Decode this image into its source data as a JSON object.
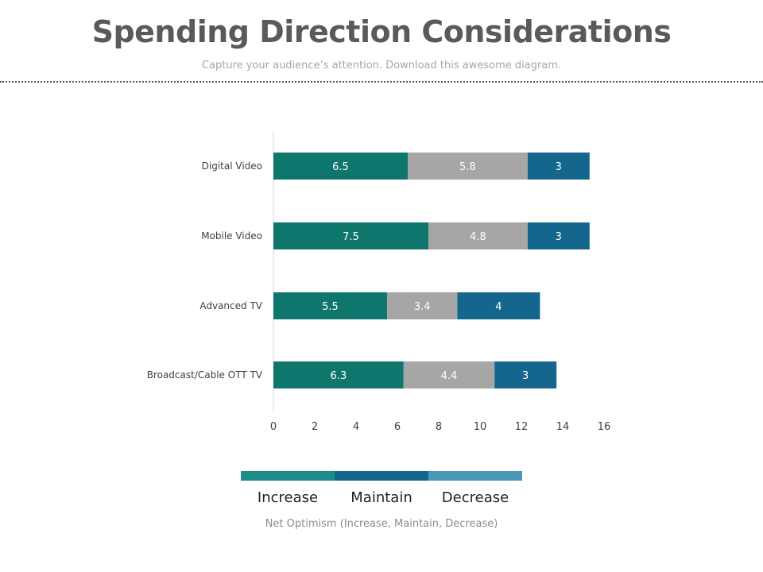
{
  "header": {
    "title": "Spending Direction Considerations",
    "subtitle": "Capture your audience’s attention. Download this awesome diagram."
  },
  "chart_data": {
    "type": "bar",
    "orientation": "horizontal",
    "stacked": true,
    "categories": [
      "Digital Video",
      "Mobile Video",
      "Advanced TV",
      "Broadcast/Cable OTT TV"
    ],
    "series": [
      {
        "color": "#0f766e",
        "values": [
          6.5,
          7.5,
          5.5,
          6.3
        ]
      },
      {
        "color": "#a6a6a6",
        "values": [
          5.8,
          4.8,
          3.4,
          4.4
        ]
      },
      {
        "color": "#14668c",
        "values": [
          3,
          3,
          4,
          3
        ]
      }
    ],
    "data_labels": [
      [
        "6.5",
        "7.5",
        "5.5",
        "6.3"
      ],
      [
        "5.8",
        "4.8",
        "3.4",
        "4.4"
      ],
      [
        "3",
        "3",
        "4",
        "3"
      ]
    ],
    "xlim": [
      0,
      16
    ],
    "xticks": [
      "0",
      "2",
      "4",
      "6",
      "8",
      "10",
      "12",
      "14",
      "16"
    ],
    "grid": false,
    "legend_position": "bottom"
  },
  "legend": {
    "items": [
      {
        "label": "Increase",
        "color": "#1a8c8a"
      },
      {
        "label": "Maintain",
        "color": "#14668c"
      },
      {
        "label": "Decrease",
        "color": "#4a97b8"
      }
    ],
    "note": "Net Optimism (Increase, Maintain, Decrease)"
  }
}
